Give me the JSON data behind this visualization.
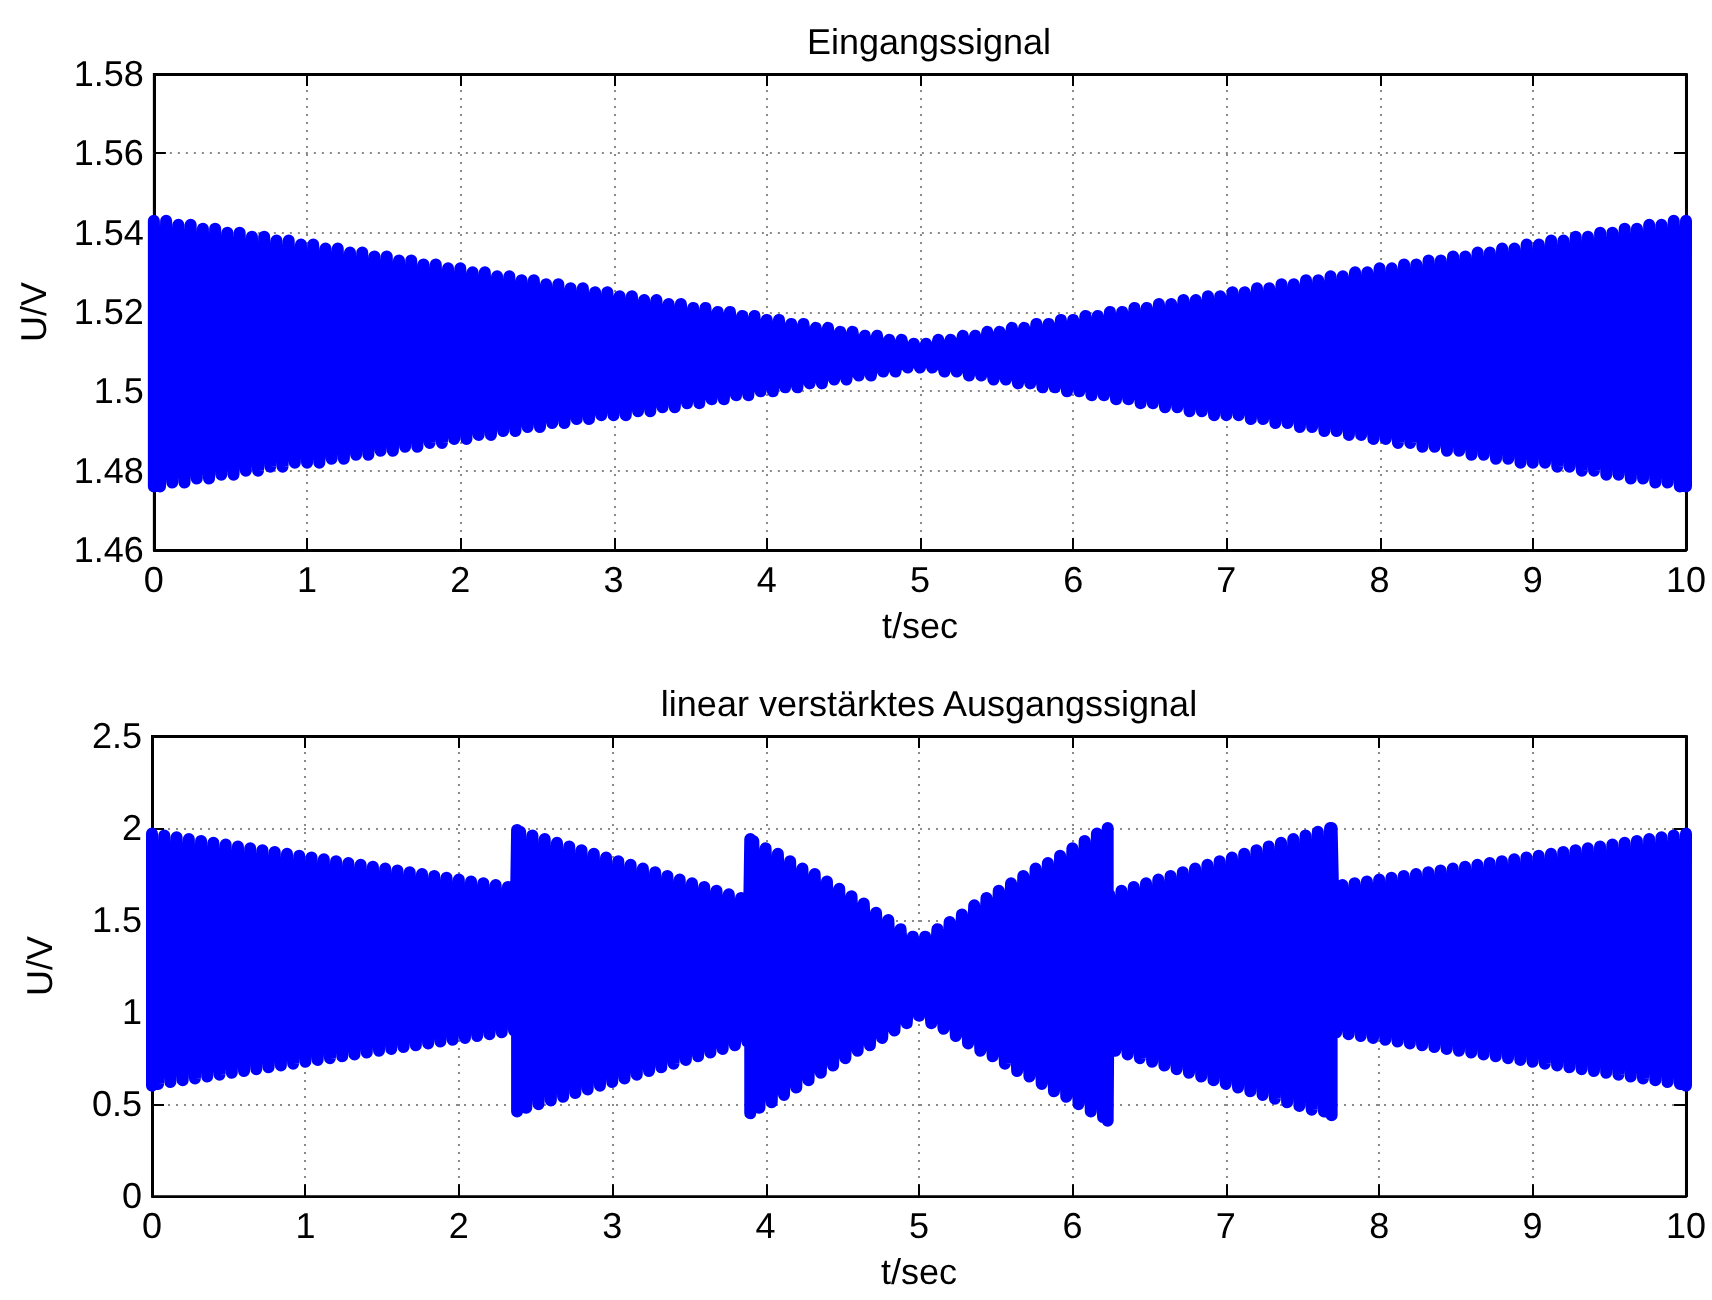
{
  "chart_data": [
    {
      "type": "line",
      "title": "Eingangssignal",
      "xlabel": "t/sec",
      "ylabel": "U/V",
      "color": "#0000ff",
      "x": [
        0,
        0,
        0.04,
        0.08,
        0.12,
        0.16,
        0.2,
        0.24,
        0.28,
        0.32,
        0.36,
        0.4,
        0.44,
        0.48,
        0.52,
        0.56,
        0.6,
        0.64,
        0.68,
        0.72,
        0.76,
        0.8,
        0.84,
        0.88,
        0.92,
        0.96,
        1,
        1.04,
        1.08,
        1.12,
        1.16,
        1.2,
        1.24,
        1.28,
        1.32,
        1.36,
        1.4,
        1.44,
        1.48,
        1.52,
        1.56,
        1.6,
        1.64,
        1.68,
        1.72,
        1.76,
        1.8,
        1.84,
        1.88,
        1.92,
        1.96,
        2,
        2.04,
        2.08,
        2.12,
        2.16,
        2.2,
        2.24,
        2.28,
        2.32,
        2.36,
        2.4,
        2.44,
        2.48,
        2.52,
        2.56,
        2.6,
        2.64,
        2.68,
        2.72,
        2.76,
        2.8,
        2.84,
        2.88,
        2.92,
        2.96,
        3,
        3.04,
        3.08,
        3.12,
        3.16,
        3.2,
        3.24,
        3.28,
        3.32,
        3.36,
        3.4,
        3.44,
        3.48,
        3.52,
        3.56,
        3.6,
        3.64,
        3.68,
        3.72,
        3.76,
        3.8,
        3.84,
        3.88,
        3.92,
        3.96,
        4,
        4.04,
        4.08,
        4.12,
        4.16,
        4.2,
        4.24,
        4.28,
        4.32,
        4.36,
        4.4,
        4.44,
        4.48,
        4.52,
        4.56,
        4.6,
        4.64,
        4.68,
        4.72,
        4.76,
        4.8,
        4.84,
        4.88,
        4.92,
        4.96,
        5,
        5.04,
        5.08,
        5.12,
        5.16,
        5.2,
        5.24,
        5.28,
        5.32,
        5.36,
        5.4,
        5.44,
        5.48,
        5.52,
        5.56,
        5.6,
        5.64,
        5.68,
        5.72,
        5.76,
        5.8,
        5.84,
        5.88,
        5.92,
        5.96,
        6,
        6.04,
        6.08,
        6.12,
        6.16,
        6.2,
        6.24,
        6.28,
        6.32,
        6.36,
        6.4,
        6.44,
        6.48,
        6.52,
        6.56,
        6.6,
        6.64,
        6.68,
        6.72,
        6.76,
        6.8,
        6.84,
        6.88,
        6.92,
        6.96,
        7,
        7.04,
        7.08,
        7.12,
        7.16,
        7.2,
        7.24,
        7.28,
        7.32,
        7.36,
        7.4,
        7.44,
        7.48,
        7.52,
        7.56,
        7.6,
        7.64,
        7.68,
        7.72,
        7.76,
        7.8,
        7.84,
        7.88,
        7.92,
        7.96,
        8,
        8.04,
        8.08,
        8.12,
        8.16,
        8.2,
        8.24,
        8.28,
        8.32,
        8.36,
        8.4,
        8.44,
        8.48,
        8.52,
        8.56,
        8.6,
        8.64,
        8.68,
        8.72,
        8.76,
        8.8,
        8.84,
        8.88,
        8.92,
        8.96,
        9,
        9.04,
        9.08,
        9.12,
        9.16,
        9.2,
        9.24,
        9.28,
        9.32,
        9.36,
        9.4,
        9.44,
        9.48,
        9.52,
        9.56,
        9.6,
        9.64,
        9.68,
        9.72,
        9.76,
        9.8,
        9.84,
        9.88,
        9.92,
        9.96,
        10,
        10
      ],
      "values": [
        1.476,
        1.543,
        1.476,
        1.543,
        1.477,
        1.542,
        1.477,
        1.542,
        1.478,
        1.541,
        1.478,
        1.541,
        1.479,
        1.54,
        1.479,
        1.54,
        1.48,
        1.539,
        1.48,
        1.539,
        1.481,
        1.538,
        1.481,
        1.538,
        1.482,
        1.537,
        1.482,
        1.537,
        1.482,
        1.536,
        1.483,
        1.536,
        1.483,
        1.535,
        1.484,
        1.535,
        1.484,
        1.534,
        1.485,
        1.534,
        1.485,
        1.533,
        1.486,
        1.533,
        1.486,
        1.532,
        1.487,
        1.532,
        1.487,
        1.531,
        1.488,
        1.531,
        1.488,
        1.53,
        1.489,
        1.53,
        1.489,
        1.529,
        1.49,
        1.529,
        1.49,
        1.528,
        1.491,
        1.528,
        1.491,
        1.527,
        1.492,
        1.527,
        1.492,
        1.526,
        1.493,
        1.526,
        1.493,
        1.525,
        1.494,
        1.525,
        1.494,
        1.524,
        1.494,
        1.524,
        1.495,
        1.523,
        1.495,
        1.523,
        1.496,
        1.522,
        1.496,
        1.522,
        1.497,
        1.521,
        1.497,
        1.521,
        1.498,
        1.52,
        1.498,
        1.52,
        1.499,
        1.519,
        1.499,
        1.519,
        1.5,
        1.518,
        1.5,
        1.518,
        1.501,
        1.517,
        1.501,
        1.517,
        1.502,
        1.516,
        1.502,
        1.516,
        1.503,
        1.515,
        1.503,
        1.515,
        1.504,
        1.514,
        1.504,
        1.514,
        1.505,
        1.513,
        1.505,
        1.513,
        1.506,
        1.512,
        1.506,
        1.512,
        1.506,
        1.513,
        1.505,
        1.513,
        1.505,
        1.514,
        1.504,
        1.514,
        1.504,
        1.515,
        1.503,
        1.515,
        1.503,
        1.516,
        1.502,
        1.516,
        1.502,
        1.517,
        1.501,
        1.517,
        1.501,
        1.518,
        1.5,
        1.518,
        1.5,
        1.519,
        1.499,
        1.519,
        1.499,
        1.52,
        1.498,
        1.52,
        1.498,
        1.521,
        1.497,
        1.521,
        1.497,
        1.522,
        1.496,
        1.522,
        1.496,
        1.523,
        1.495,
        1.523,
        1.495,
        1.524,
        1.494,
        1.524,
        1.494,
        1.525,
        1.494,
        1.525,
        1.493,
        1.526,
        1.493,
        1.526,
        1.492,
        1.527,
        1.492,
        1.527,
        1.491,
        1.528,
        1.491,
        1.528,
        1.49,
        1.529,
        1.49,
        1.529,
        1.489,
        1.53,
        1.489,
        1.53,
        1.488,
        1.531,
        1.488,
        1.531,
        1.487,
        1.532,
        1.487,
        1.532,
        1.486,
        1.533,
        1.486,
        1.533,
        1.485,
        1.534,
        1.485,
        1.534,
        1.484,
        1.535,
        1.484,
        1.535,
        1.483,
        1.536,
        1.483,
        1.536,
        1.482,
        1.537,
        1.482,
        1.537,
        1.482,
        1.538,
        1.481,
        1.538,
        1.481,
        1.539,
        1.48,
        1.539,
        1.48,
        1.54,
        1.479,
        1.54,
        1.479,
        1.541,
        1.478,
        1.541,
        1.478,
        1.542,
        1.477,
        1.542,
        1.477,
        1.543,
        1.476,
        1.543,
        1.476
      ],
      "xlim": [
        0,
        10
      ],
      "xticks": [
        0,
        1,
        2,
        3,
        4,
        5,
        6,
        7,
        8,
        9,
        10
      ],
      "ylim": [
        1.46,
        1.58
      ],
      "yticks": [
        1.46,
        1.48,
        1.5,
        1.52,
        1.54,
        1.56,
        1.58
      ],
      "grid": true
    },
    {
      "type": "line",
      "title": "linear verstärktes Ausgangssignal",
      "xlabel": "t/sec",
      "ylabel": "U/V",
      "color": "#0000ff",
      "x": [
        0,
        0,
        0.04,
        0.08,
        0.12,
        0.16,
        0.2,
        0.24,
        0.28,
        0.32,
        0.36,
        0.4,
        0.44,
        0.48,
        0.52,
        0.56,
        0.6,
        0.64,
        0.68,
        0.72,
        0.76,
        0.8,
        0.84,
        0.88,
        0.92,
        0.96,
        1,
        1.04,
        1.08,
        1.12,
        1.16,
        1.2,
        1.24,
        1.28,
        1.32,
        1.36,
        1.4,
        1.44,
        1.48,
        1.52,
        1.56,
        1.6,
        1.64,
        1.68,
        1.72,
        1.76,
        1.8,
        1.84,
        1.88,
        1.92,
        1.96,
        2,
        2.04,
        2.08,
        2.12,
        2.16,
        2.2,
        2.24,
        2.28,
        2.32,
        2.36,
        2.38,
        2.38,
        2.4,
        2.44,
        2.48,
        2.52,
        2.56,
        2.6,
        2.64,
        2.68,
        2.72,
        2.76,
        2.8,
        2.84,
        2.88,
        2.92,
        2.96,
        3,
        3.04,
        3.08,
        3.12,
        3.16,
        3.2,
        3.24,
        3.28,
        3.32,
        3.36,
        3.4,
        3.44,
        3.48,
        3.52,
        3.56,
        3.6,
        3.64,
        3.68,
        3.72,
        3.76,
        3.8,
        3.84,
        3.88,
        3.9,
        3.9,
        3.92,
        3.96,
        4,
        4.04,
        4.08,
        4.12,
        4.16,
        4.2,
        4.24,
        4.28,
        4.32,
        4.36,
        4.4,
        4.44,
        4.48,
        4.52,
        4.56,
        4.6,
        4.64,
        4.68,
        4.72,
        4.76,
        4.8,
        4.84,
        4.88,
        4.92,
        4.96,
        5,
        5.04,
        5.08,
        5.12,
        5.16,
        5.2,
        5.24,
        5.28,
        5.32,
        5.36,
        5.4,
        5.44,
        5.48,
        5.52,
        5.56,
        5.6,
        5.64,
        5.68,
        5.72,
        5.76,
        5.8,
        5.84,
        5.88,
        5.92,
        5.96,
        6,
        6.04,
        6.08,
        6.12,
        6.16,
        6.2,
        6.23,
        6.23,
        6.24,
        6.28,
        6.32,
        6.36,
        6.4,
        6.44,
        6.48,
        6.52,
        6.56,
        6.6,
        6.64,
        6.68,
        6.72,
        6.76,
        6.8,
        6.84,
        6.88,
        6.92,
        6.96,
        7,
        7.04,
        7.08,
        7.12,
        7.16,
        7.2,
        7.24,
        7.28,
        7.32,
        7.36,
        7.4,
        7.44,
        7.48,
        7.52,
        7.56,
        7.6,
        7.64,
        7.68,
        7.69,
        7.69,
        7.72,
        7.76,
        7.8,
        7.84,
        7.88,
        7.92,
        7.96,
        8,
        8.04,
        8.08,
        8.12,
        8.16,
        8.2,
        8.24,
        8.28,
        8.32,
        8.36,
        8.4,
        8.44,
        8.48,
        8.52,
        8.56,
        8.6,
        8.64,
        8.68,
        8.72,
        8.76,
        8.8,
        8.84,
        8.88,
        8.92,
        8.96,
        9,
        9.04,
        9.08,
        9.12,
        9.16,
        9.2,
        9.24,
        9.28,
        9.32,
        9.36,
        9.4,
        9.44,
        9.48,
        9.52,
        9.56,
        9.6,
        9.64,
        9.68,
        9.72,
        9.76,
        9.8,
        9.84,
        9.88,
        9.92,
        9.96,
        10,
        10
      ],
      "values": [
        0.6,
        1.97,
        0.61,
        1.96,
        0.62,
        1.95,
        0.63,
        1.94,
        0.64,
        1.93,
        0.65,
        1.92,
        0.66,
        1.91,
        0.67,
        1.9,
        0.68,
        1.89,
        0.69,
        1.88,
        0.7,
        1.87,
        0.71,
        1.86,
        0.72,
        1.85,
        0.73,
        1.84,
        0.74,
        1.83,
        0.75,
        1.82,
        0.76,
        1.81,
        0.77,
        1.8,
        0.78,
        1.79,
        0.79,
        1.78,
        0.8,
        1.77,
        0.81,
        1.76,
        0.82,
        1.75,
        0.83,
        1.74,
        0.84,
        1.73,
        0.85,
        1.72,
        0.86,
        1.71,
        0.87,
        1.7,
        0.88,
        1.69,
        0.89,
        1.68,
        0.9,
        1.99,
        0.46,
        1.98,
        0.48,
        1.96,
        0.5,
        1.94,
        0.52,
        1.92,
        0.54,
        1.9,
        0.56,
        1.88,
        0.58,
        1.86,
        0.6,
        1.84,
        0.62,
        1.82,
        0.64,
        1.8,
        0.66,
        1.78,
        0.68,
        1.76,
        0.7,
        1.74,
        0.72,
        1.72,
        0.74,
        1.7,
        0.76,
        1.68,
        0.78,
        1.66,
        0.8,
        1.64,
        0.82,
        1.62,
        0.84,
        1.94,
        0.45,
        1.93,
        0.48,
        1.89,
        0.51,
        1.86,
        0.55,
        1.82,
        0.59,
        1.78,
        0.63,
        1.75,
        0.67,
        1.71,
        0.71,
        1.67,
        0.75,
        1.63,
        0.79,
        1.59,
        0.82,
        1.54,
        0.86,
        1.5,
        0.9,
        1.45,
        0.94,
        1.41,
        0.98,
        1.41,
        0.94,
        1.45,
        0.91,
        1.49,
        0.87,
        1.53,
        0.83,
        1.58,
        0.79,
        1.62,
        0.76,
        1.66,
        0.72,
        1.7,
        0.68,
        1.74,
        0.65,
        1.78,
        0.61,
        1.81,
        0.57,
        1.85,
        0.54,
        1.89,
        0.5,
        1.93,
        0.46,
        1.97,
        0.43,
        2.0,
        0.41,
        1.64,
        0.79,
        1.66,
        0.77,
        1.68,
        0.75,
        1.7,
        0.73,
        1.72,
        0.71,
        1.74,
        0.69,
        1.76,
        0.67,
        1.78,
        0.65,
        1.8,
        0.63,
        1.82,
        0.61,
        1.84,
        0.59,
        1.86,
        0.57,
        1.88,
        0.55,
        1.9,
        0.53,
        1.92,
        0.51,
        1.94,
        0.49,
        1.96,
        0.47,
        1.98,
        0.46,
        2.0,
        0.44,
        2.0,
        0.89,
        1.69,
        0.88,
        1.7,
        0.87,
        1.71,
        0.86,
        1.72,
        0.85,
        1.73,
        0.84,
        1.74,
        0.83,
        1.75,
        0.82,
        1.76,
        0.81,
        1.77,
        0.8,
        1.78,
        0.79,
        1.79,
        0.78,
        1.8,
        0.77,
        1.81,
        0.76,
        1.82,
        0.75,
        1.83,
        0.74,
        1.84,
        0.73,
        1.85,
        0.72,
        1.86,
        0.71,
        1.87,
        0.7,
        1.88,
        0.69,
        1.89,
        0.68,
        1.9,
        0.67,
        1.91,
        0.66,
        1.92,
        0.65,
        1.93,
        0.64,
        1.94,
        0.63,
        1.95,
        0.62,
        1.96,
        0.61,
        1.97,
        0.6
      ],
      "xlim": [
        0,
        10
      ],
      "xticks": [
        0,
        1,
        2,
        3,
        4,
        5,
        6,
        7,
        8,
        9,
        10
      ],
      "ylim": [
        0,
        2.5
      ],
      "yticks": [
        0,
        0.5,
        1,
        1.5,
        2,
        2.5
      ],
      "grid": true
    }
  ]
}
